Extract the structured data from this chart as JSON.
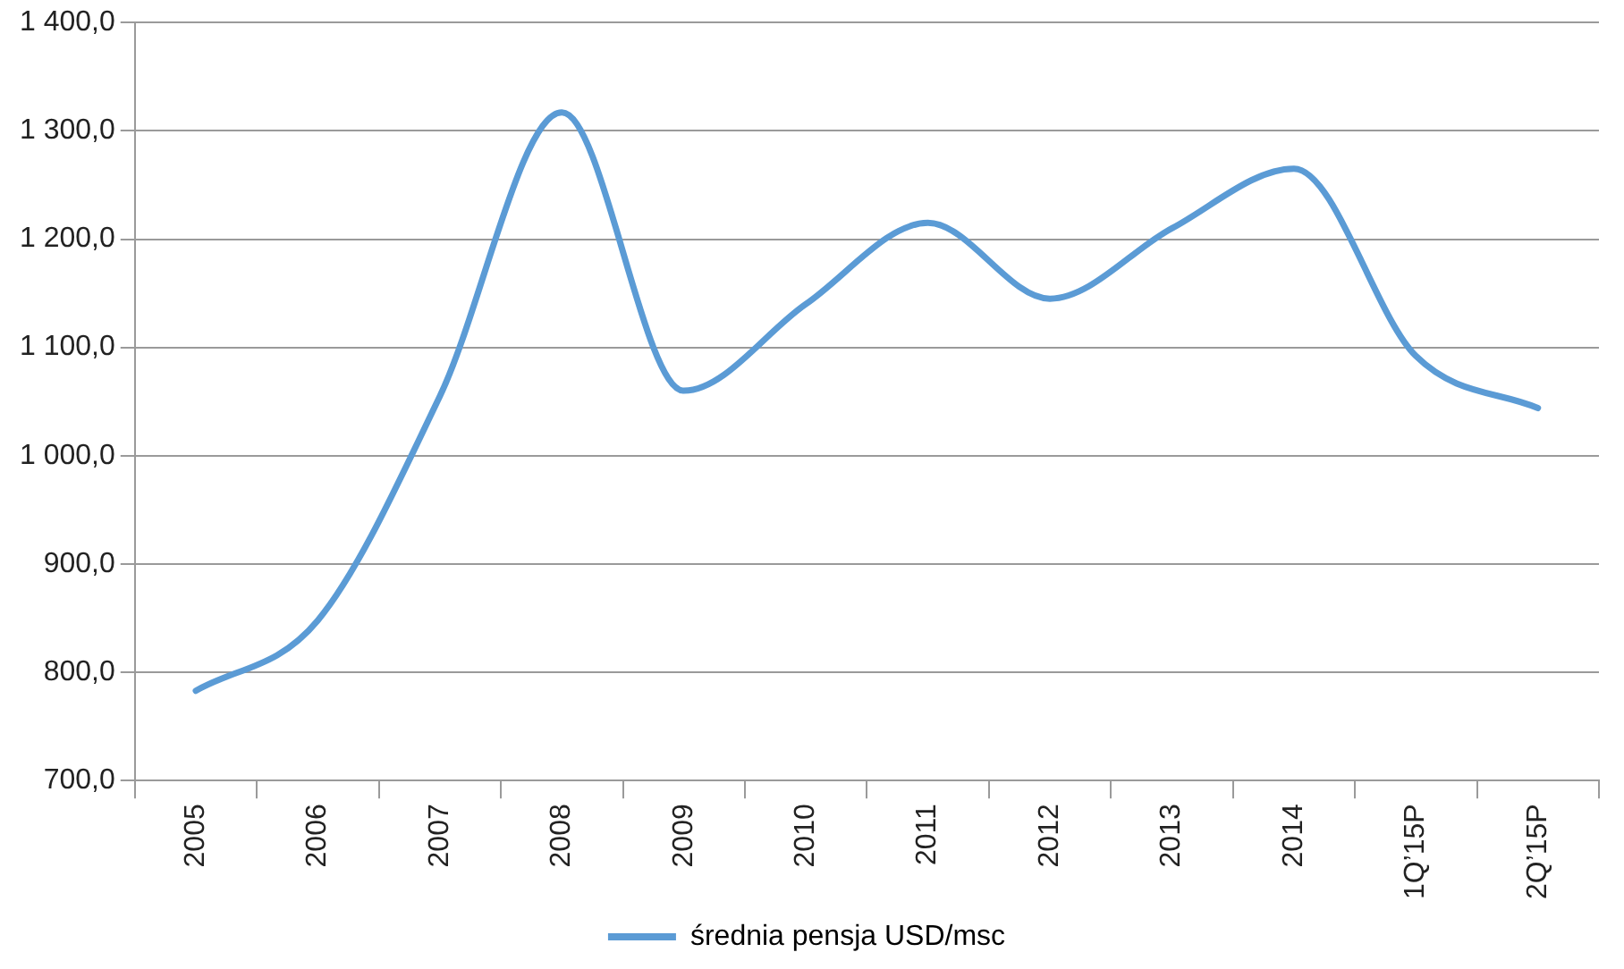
{
  "chart_data": {
    "type": "line",
    "categories": [
      "2005",
      "2006",
      "2007",
      "2008",
      "2009",
      "2010",
      "2011",
      "2012",
      "2013",
      "2014",
      "1Q’15P",
      "2Q’15P"
    ],
    "series": [
      {
        "name": "średnia pensja USD/msc",
        "color": "#5b9bd5",
        "values": [
          783,
          848,
          1055,
          1317,
          1060,
          1140,
          1215,
          1145,
          1210,
          1265,
          1092,
          1044
        ]
      }
    ],
    "ylim": [
      700,
      1400
    ],
    "yticks": [
      {
        "value": 700,
        "label": "700,0"
      },
      {
        "value": 800,
        "label": "800,0"
      },
      {
        "value": 900,
        "label": "900,0"
      },
      {
        "value": 1000,
        "label": "1 000,0"
      },
      {
        "value": 1100,
        "label": "1 100,0"
      },
      {
        "value": 1200,
        "label": "1 200,0"
      },
      {
        "value": 1300,
        "label": "1 300,0"
      },
      {
        "value": 1400,
        "label": "1 400,0"
      }
    ],
    "grid": "y",
    "legend": "bottom",
    "marker": "none",
    "line_style": "solid"
  }
}
